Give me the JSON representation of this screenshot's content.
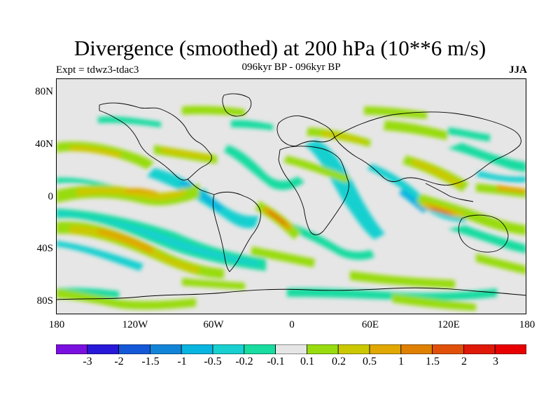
{
  "header": {
    "title": "Divergence (smoothed) at 200 hPa (10**6 m/s)",
    "expt": "Expt = tdwz3-tdac3",
    "subtitle": "096kyr BP - 096kyr BP",
    "season": "JJA"
  },
  "axes": {
    "lat_ticks": [
      "80N",
      "40N",
      "0",
      "40S",
      "80S"
    ],
    "lon_ticks": [
      "180",
      "120W",
      "60W",
      "0",
      "60E",
      "120E",
      "180"
    ]
  },
  "colorbar": {
    "labels": [
      "-3",
      "-2",
      "-1.5",
      "-1",
      "-0.5",
      "-0.2",
      "-0.1",
      "0.1",
      "0.2",
      "0.5",
      "1",
      "1.5",
      "2",
      "3"
    ],
    "colors": [
      "#7a10e0",
      "#2818d8",
      "#1458d8",
      "#1284d8",
      "#08b4e0",
      "#18d0d0",
      "#18dca0",
      "#e6e6e6",
      "#98dc10",
      "#ccc800",
      "#e0a800",
      "#e08000",
      "#e05008",
      "#e01808",
      "#e80000"
    ]
  },
  "map": {
    "projection": "cylindrical-equidistant",
    "lon_range": [
      -180,
      180
    ],
    "lat_range": [
      -90,
      90
    ],
    "background_color": "#e6e6e6",
    "coastlines": true
  }
}
